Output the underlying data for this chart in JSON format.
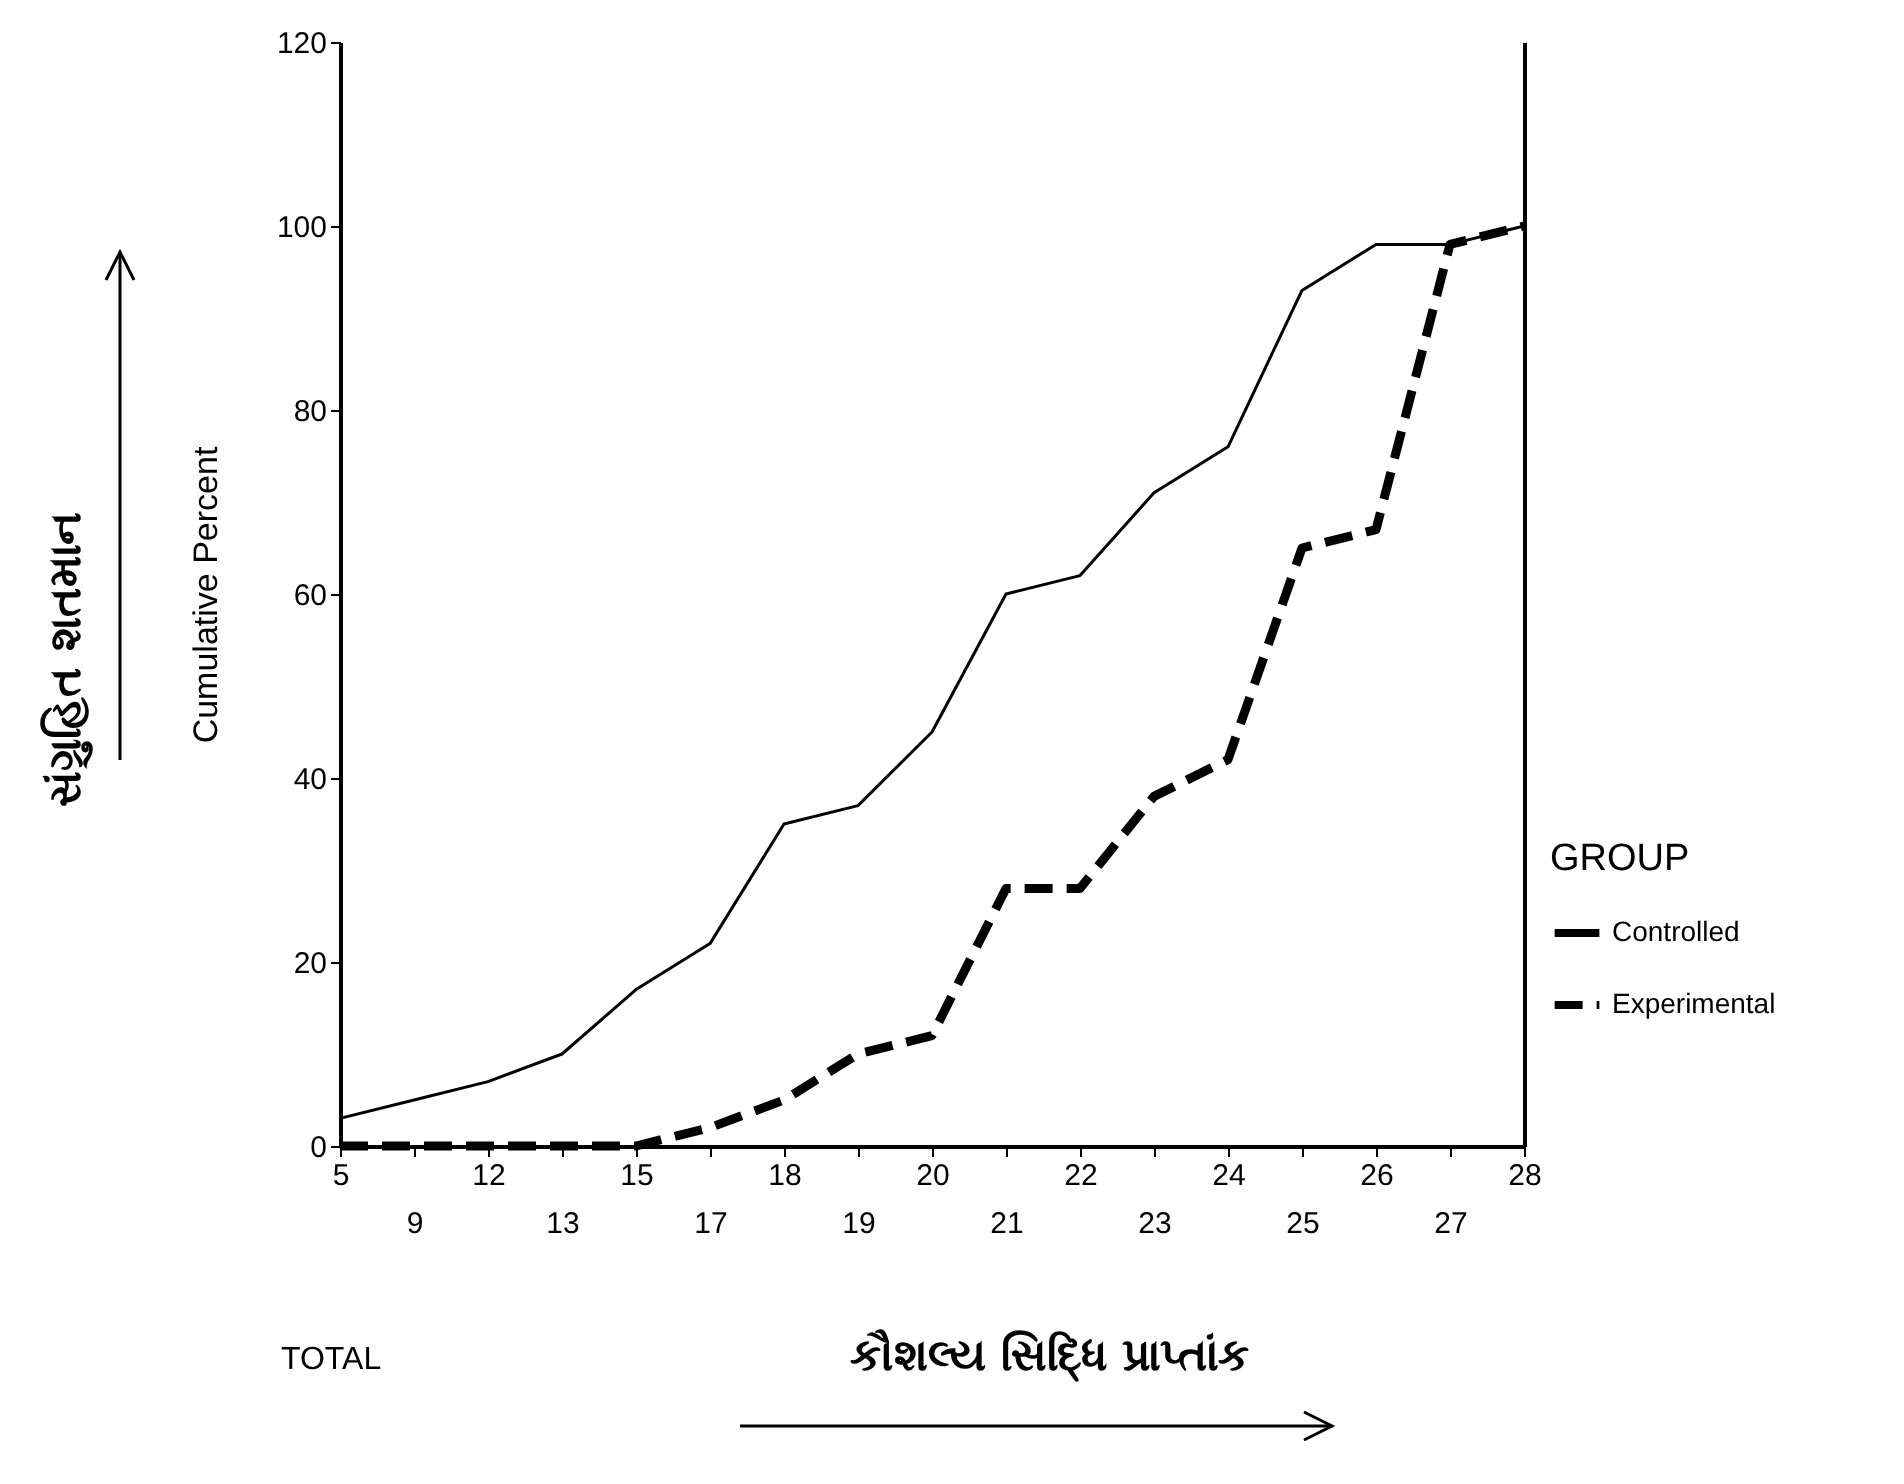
{
  "chart_data": {
    "type": "line",
    "xlabel": "TOTAL",
    "ylabel": "Cumulative Percent",
    "legend_title": "GROUP",
    "legend": "right",
    "annotations": [
      "સંગ્રુહિત શતમાન",
      "કૌશલ્ય સિદ્ધિ પ્રાપ્તાંક"
    ],
    "categories": [
      "5",
      "9",
      "12",
      "13",
      "15",
      "17",
      "18",
      "19",
      "20",
      "21",
      "22",
      "23",
      "24",
      "25",
      "26",
      "27",
      "28"
    ],
    "series": [
      {
        "name": "Controlled",
        "color": "#000000",
        "line_style": "solid",
        "values": [
          3,
          5,
          7,
          10,
          17,
          22,
          35,
          37,
          45,
          60,
          62,
          71,
          76,
          93,
          98,
          98,
          100
        ]
      },
      {
        "name": "Experimental",
        "color": "#000000",
        "line_style": "dashed",
        "values": [
          0,
          0,
          0,
          0,
          0,
          2,
          5,
          10,
          12,
          28,
          28,
          38,
          42,
          65,
          67,
          98,
          100
        ]
      }
    ],
    "ylim": [
      0,
      120
    ],
    "yticks": [
      0,
      20,
      40,
      60,
      80,
      100,
      120
    ]
  }
}
